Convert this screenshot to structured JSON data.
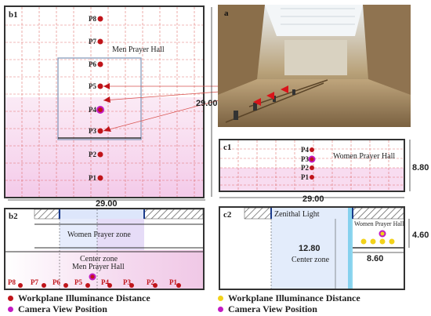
{
  "panels": {
    "b1": {
      "label": "b1",
      "title": "Men Prayer Hall",
      "height_dim": "29.00",
      "width_dim": "29.00",
      "points": [
        "P8",
        "P7",
        "P6",
        "P5",
        "P4",
        "P3",
        "P2",
        "P1"
      ]
    },
    "a": {
      "label": "a"
    },
    "c1": {
      "label": "c1",
      "title": "Women Prayer Hall",
      "height_dim": "8.80",
      "width_dim": "29.00",
      "points": [
        "P4",
        "P3",
        "P2",
        "P1"
      ]
    },
    "b2": {
      "label": "b2",
      "zone1": "Women Prayer  zone",
      "zone2": "Center zone",
      "zone3": "Men Prayer Hall",
      "points": [
        "P8",
        "P7",
        "P6",
        "P5",
        "P4",
        "P3",
        "P2",
        "P1"
      ]
    },
    "c2": {
      "label": "c2",
      "zenithal": "Zenithal Light",
      "center_dim": "12.80",
      "center_label": "Center zone",
      "women_label": "Women Prayer Hall",
      "dim_460": "4.60",
      "dim_860": "8.60"
    }
  },
  "legend": {
    "left": [
      {
        "label": "Workplane Illuminance Distance",
        "color": "#c0141a"
      },
      {
        "label": "Camera View Position",
        "color": "#c21ac2"
      }
    ],
    "right": [
      {
        "label": "Workplane Illuminance Distance",
        "color": "#f2d21a"
      },
      {
        "label": "Camera View Position",
        "color": "#c21ac2"
      }
    ]
  },
  "colors": {
    "grid": "#d9534f",
    "frame": "#333333",
    "pink": "#f7d7ee",
    "blue": "#dfe8fb"
  }
}
